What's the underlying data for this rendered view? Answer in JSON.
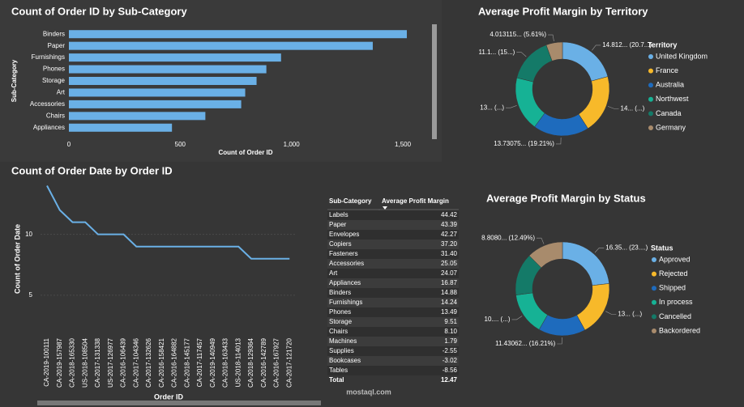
{
  "chart_data": [
    {
      "type": "bar",
      "orientation": "horizontal",
      "title": "Count of Order ID by Sub-Category",
      "categories": [
        "Binders",
        "Paper",
        "Furnishings",
        "Phones",
        "Storage",
        "Art",
        "Accessories",
        "Chairs",
        "Appliances"
      ],
      "values": [
        1518,
        1365,
        953,
        887,
        843,
        792,
        774,
        613,
        463
      ],
      "color": "#6ab0e6",
      "x_label": "Count of Order ID",
      "y_label": "Sub-Category",
      "xlim": [
        0,
        1620
      ],
      "xticks": [
        0,
        500,
        {
          "value": 1000,
          "label": "1,000"
        },
        {
          "value": 1500,
          "label": "1,500"
        }
      ]
    },
    {
      "type": "line",
      "title": "Count of Order Date by Order ID",
      "categories": [
        "CA-2019-100111",
        "CA-2019-157987",
        "CA-2018-165330",
        "US-2018-108504",
        "CA-2017-131338",
        "US-2017-126977",
        "CA-2016-106439",
        "CA-2017-104346",
        "CA-2017-132626",
        "CA-2016-158421",
        "CA-2016-164882",
        "CA-2018-145177",
        "CA-2017-117457",
        "CA-2019-140949",
        "CA-2018-163433",
        "US-2018-114013",
        "CA-2018-129364",
        "CA-2016-142789",
        "CA-2016-167927",
        "CA-2017-121720"
      ],
      "values": [
        14,
        12,
        11,
        11,
        10,
        10,
        10,
        9,
        9,
        9,
        9,
        9,
        9,
        9,
        9,
        9,
        8,
        8,
        8,
        8
      ],
      "color": "#6ab0e6",
      "x_label": "Order ID",
      "y_label": "Count of Order Date",
      "ylim": [
        2,
        14.3
      ],
      "yticks": [
        5,
        10
      ],
      "grid": true
    },
    {
      "type": "pie",
      "donut": true,
      "title": "Average Profit Margin by Territory",
      "legend_title": "Territory",
      "categories": [
        "United Kingdom",
        "France",
        "Australia",
        "Northwest",
        "Canada",
        "Germany"
      ],
      "values": [
        14.812,
        14.4,
        13.73075,
        13.4,
        11.1,
        4.013115
      ],
      "value_labels": [
        "14.812... (20.7...)",
        "14... (...)",
        "13.73075... (19.21%)",
        "13... (...)",
        "11.1... (15...)",
        "4.013115... (5.61%)"
      ],
      "colors": [
        "#6ab0e6",
        "#f7b92a",
        "#1e6bbd",
        "#16b295",
        "#147a68",
        "#a88b6c"
      ]
    },
    {
      "type": "pie",
      "donut": true,
      "title": "Average Profit Margin by Status",
      "legend_title": "Status",
      "categories": [
        "Approved",
        "Rejected",
        "Shipped",
        "In process",
        "Cancelled",
        "Backordered"
      ],
      "values": [
        16.35,
        13.3,
        11.43062,
        10.3,
        10.3,
        8.808
      ],
      "value_labels": [
        "16.35... (23....)",
        "13... (...)",
        "11.43062... (16.21%)",
        "10.... (...)",
        null,
        "8.8080... (12.49%)"
      ],
      "colors": [
        "#6ab0e6",
        "#f7b92a",
        "#1e6bbd",
        "#16b295",
        "#147a68",
        "#a88b6c"
      ]
    }
  ],
  "table": {
    "columns": [
      "Sub-Category",
      "Average Profit Margin"
    ],
    "rows": [
      [
        "Labels",
        "44.42"
      ],
      [
        "Paper",
        "43.39"
      ],
      [
        "Envelopes",
        "42.27"
      ],
      [
        "Copiers",
        "37.20"
      ],
      [
        "Fasteners",
        "31.40"
      ],
      [
        "Accessories",
        "25.05"
      ],
      [
        "Art",
        "24.07"
      ],
      [
        "Appliances",
        "16.87"
      ],
      [
        "Binders",
        "14.88"
      ],
      [
        "Furnishings",
        "14.24"
      ],
      [
        "Phones",
        "13.49"
      ],
      [
        "Storage",
        "9.51"
      ],
      [
        "Chairs",
        "8.10"
      ],
      [
        "Machines",
        "1.79"
      ],
      [
        "Supplies",
        "-2.55"
      ],
      [
        "Bookcases",
        "-3.02"
      ],
      [
        "Tables",
        "-8.56"
      ]
    ],
    "total": [
      "Total",
      "12.47"
    ]
  },
  "watermark": "mostaql.com"
}
